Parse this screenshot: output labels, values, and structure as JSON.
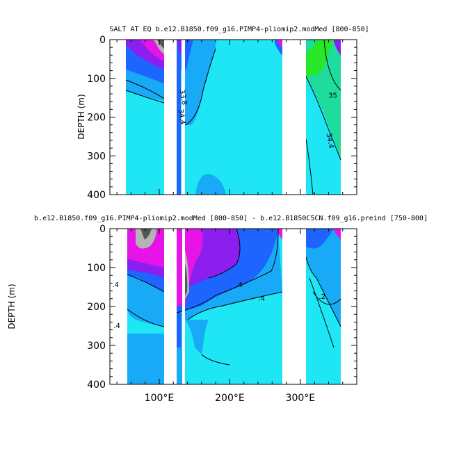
{
  "chart_data": [
    {
      "type": "heatmap",
      "title": "SALT AT EQ b.e12.B1850.f09_g16.PIMP4-pliomip2.modMed [800-850]",
      "ylabel": "DEPTH (m)",
      "xlim": [
        30,
        380
      ],
      "ylim": [
        400,
        0
      ],
      "yticks": [
        "0",
        "100",
        "200",
        "300",
        "400"
      ],
      "xticks": [],
      "contour_labels": [
        {
          "text": "35",
          "x": 346,
          "y": 150
        },
        {
          "text": "34.4",
          "x": 129,
          "y": 200
        },
        {
          "text": "34.4",
          "x": 339,
          "y": 262
        },
        {
          "text": "33.8",
          "x": 131,
          "y": 150
        }
      ],
      "land_gaps": [
        [
          98,
          108
        ],
        [
          126,
          129
        ],
        [
          278,
          313
        ]
      ],
      "colors": {
        "bg": "#1ee6f5",
        "mid": "#19aaf7",
        "deep": "#1e64ff",
        "purple": "#8c1ef0",
        "magenta": "#e614e6",
        "green": "#28e628",
        "teal": "#1edc9c"
      }
    },
    {
      "type": "heatmap",
      "title": "b.e12.B1850.f09_g16.PIMP4-pliomip2.modMed [800-850] - b.e12.B1850C5CN.f09_g16.preind [750-800]",
      "ylabel": "DEPTH (m)",
      "xlim": [
        30,
        380
      ],
      "ylim": [
        400,
        0
      ],
      "yticks": [
        "0",
        "100",
        "200",
        "300",
        "400"
      ],
      "xticks": [
        "100°E",
        "200°E",
        "300°E"
      ],
      "contour_labels": [
        {
          "text": ".4",
          "x": 213,
          "y": 150
        },
        {
          "text": ".4",
          "x": 245,
          "y": 185
        },
        {
          "text": ".4",
          "x": 38,
          "y": 150
        },
        {
          "text": ".4",
          "x": 40,
          "y": 255
        },
        {
          "text": ".2",
          "x": 331,
          "y": 180
        }
      ],
      "land_gaps": [
        [
          98,
          108
        ],
        [
          126,
          129
        ],
        [
          278,
          313
        ]
      ]
    }
  ]
}
